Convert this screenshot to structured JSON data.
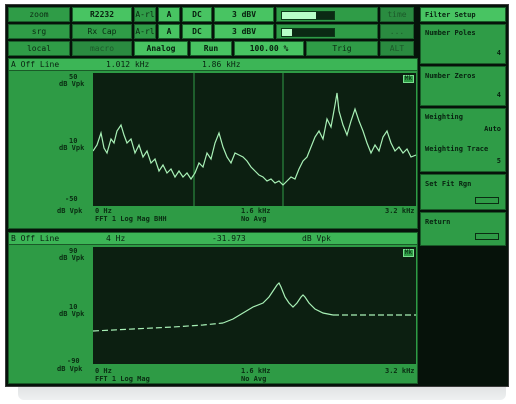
{
  "status": {
    "row1": [
      "zoom",
      "R2232",
      "A-rl",
      "A",
      "DC",
      "3 dBV",
      "",
      "time"
    ],
    "row2": [
      "srg",
      "Rx Cap",
      "A-rl",
      "A",
      "DC",
      "3 dBV",
      "",
      "..."
    ],
    "row3": [
      "local",
      "macro",
      "Analog",
      "Run",
      "100.00 %",
      "Trig",
      "ALT"
    ],
    "level_a": 0.65,
    "level_b": 0.2
  },
  "trace_a": {
    "title": "A Off Line",
    "readout_x": "1.012 kHz",
    "readout_y": "1.86 kHz",
    "y_top": "50",
    "y_top_unit": "dB Vpk",
    "y_mid": "10",
    "y_mid_unit": "dB Vpk",
    "y_bot": "-50",
    "y_bot_unit": "dB Vpk",
    "x_start": "0 Hz",
    "x_mid": "1.6 kHz",
    "x_end": "3.2 kHz",
    "info": "FFT 1 Log Mag BHH",
    "window": "No Avg",
    "marker_tag": "Mk"
  },
  "trace_b": {
    "title": "B Off Line",
    "readout_x": "4 Hz",
    "readout_y": "-31.973",
    "readout_unit": "dB Vpk",
    "y_top": "90",
    "y_top_unit": "dB Vpk",
    "y_mid": "10",
    "y_mid_unit": "dB Vpk",
    "y_bot": "-90",
    "y_bot_unit": "dB Vpk",
    "x_start": "0 Hz",
    "x_mid": "1.6 kHz",
    "x_end": "3.2 kHz",
    "info": "FFT 1 Log Mag",
    "window": "No Avg",
    "marker_tag": "Mk"
  },
  "softkeys": {
    "title": "Filter Setup",
    "number_poles_label": "Number Poles",
    "number_poles_value": "4",
    "number_zeros_label": "Number Zeros",
    "number_zeros_value": "4",
    "weighting_label": "Weighting",
    "weighting_value": "Auto",
    "weighting_trace_label": "Weighting Trace",
    "weighting_trace_value": "5",
    "set_fit_label": "Set Fit Rgn",
    "return_label": "Return"
  }
}
